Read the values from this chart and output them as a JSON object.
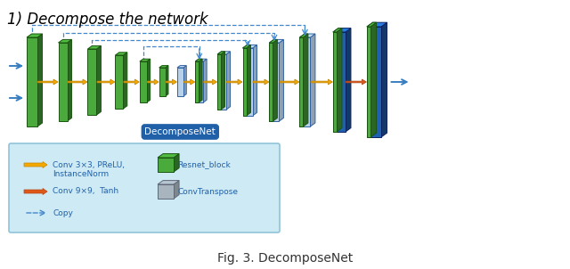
{
  "title": "1) Decompose the network",
  "fig_caption": "Fig. 3. DecomposeNet",
  "decomposenet_label": "DecomposeNet",
  "background_color": "#ffffff",
  "legend_bg_color": "#ceeaf5",
  "legend_border_color": "#90c4d8",
  "blue_dark": "#2060b0",
  "blue_light": "#b8d0e8",
  "green_block": "#4aaa3c",
  "gray_block": "#b0b8c0",
  "arrow_yellow": "#f5a800",
  "arrow_orange": "#e05818",
  "arrow_blue": "#3a7ec0",
  "dashed_color": "#4488cc",
  "decomposenet_box_color": "#2060a8",
  "green_edge": "#1a5510",
  "blue_edge": "#0a2060",
  "blue_light_edge": "#3060a0"
}
